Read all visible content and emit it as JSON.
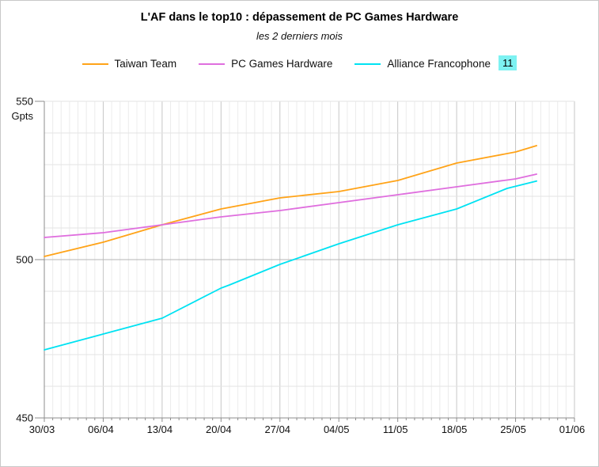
{
  "header": {
    "title": "L'AF dans le top10 : dépassement de PC Games Hardware",
    "subtitle": "les 2 derniers mois"
  },
  "legend": {
    "badge": {
      "text": "11",
      "bg": "#7df2f2"
    }
  },
  "chart_data": {
    "type": "line",
    "title": "L'AF dans le top10 : dépassement de PC Games Hardware",
    "subtitle": "les 2 derniers mois",
    "ylabel": "Gpts",
    "ylim": [
      450,
      550
    ],
    "y_tick_values": [
      450,
      500,
      550
    ],
    "y_minor_step": 10,
    "y_major_gridline": 500,
    "x_range_days": [
      0,
      63
    ],
    "x_minor_step_days": 1,
    "x_major_step_days": 7,
    "x_tick_days": [
      0,
      7,
      14,
      21,
      28,
      35,
      42,
      49,
      56,
      63
    ],
    "x_tick_labels": [
      "30/03",
      "06/04",
      "13/04",
      "20/04",
      "27/04",
      "04/05",
      "11/05",
      "18/05",
      "25/05",
      "01/06"
    ],
    "legend_position": "top",
    "grid": "on",
    "colors": {
      "grid_minor_v": "#ececec",
      "grid_major_v": "#c7c7c7",
      "grid_h": "#e3e3e3",
      "grid_h_major": "#b5b5b5",
      "axis": "#8c8c8c",
      "tick_text": "#111111"
    },
    "series": [
      {
        "name": "Taiwan Team",
        "color": "#ffa318",
        "points": [
          [
            0,
            501
          ],
          [
            7,
            505.5
          ],
          [
            14,
            511
          ],
          [
            21,
            516
          ],
          [
            28,
            519.5
          ],
          [
            35,
            521.5
          ],
          [
            42,
            525
          ],
          [
            49,
            530.5
          ],
          [
            56,
            534
          ],
          [
            58.5,
            536
          ]
        ]
      },
      {
        "name": "PC Games Hardware",
        "color": "#df6ede",
        "points": [
          [
            0,
            507
          ],
          [
            7,
            508.5
          ],
          [
            14,
            511
          ],
          [
            21,
            513.5
          ],
          [
            28,
            515.5
          ],
          [
            35,
            518
          ],
          [
            42,
            520.5
          ],
          [
            49,
            523
          ],
          [
            56,
            525.5
          ],
          [
            58.5,
            527
          ]
        ]
      },
      {
        "name": "Alliance Francophone",
        "color": "#00e2f2",
        "badge": "11",
        "points": [
          [
            0,
            471.5
          ],
          [
            7,
            476.5
          ],
          [
            14,
            481.5
          ],
          [
            21,
            491
          ],
          [
            22,
            492
          ],
          [
            28,
            498.5
          ],
          [
            35,
            505
          ],
          [
            42,
            511
          ],
          [
            49,
            516
          ],
          [
            55,
            522.5
          ],
          [
            58.5,
            524.8
          ]
        ]
      }
    ]
  }
}
